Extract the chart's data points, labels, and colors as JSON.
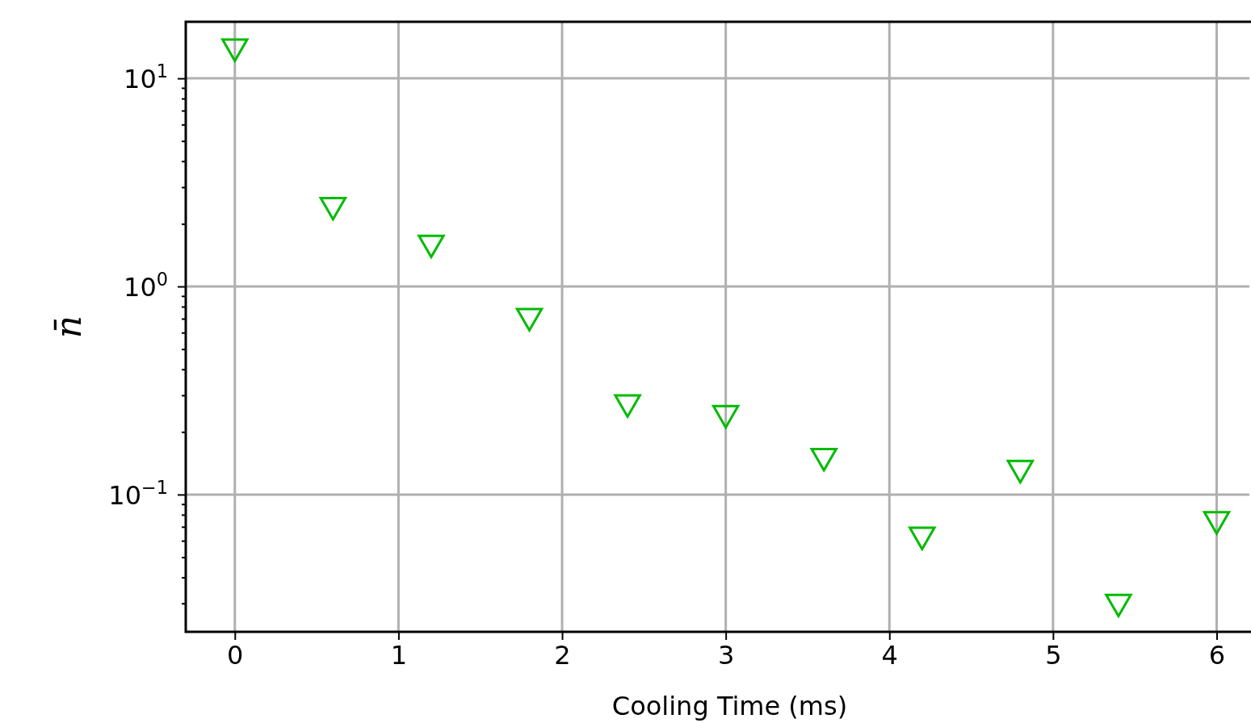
{
  "chart_data": {
    "type": "scatter",
    "xlabel": "Cooling Time (ms)",
    "ylabel": "n̄",
    "x": [
      0,
      0.6,
      1.2,
      1.8,
      2.4,
      3.0,
      3.6,
      4.2,
      4.8,
      5.4,
      6.0
    ],
    "series": [
      {
        "color": "#00bb00",
        "values": [
          14.2,
          2.46,
          1.62,
          0.72,
          0.277,
          0.246,
          0.153,
          0.064,
          0.134,
          0.0305,
          0.076
        ]
      }
    ],
    "log": "y",
    "marker": "triangle",
    "grid": true,
    "xlim": [
      -0.3,
      6.2
    ],
    "xticks": [
      0,
      1,
      2,
      3,
      4,
      5,
      6
    ],
    "ylim": [
      0.0219,
      18.7
    ],
    "yticks": [
      {
        "value": 0.03,
        "label": null
      },
      {
        "value": 0.04,
        "label": null
      },
      {
        "value": 0.05,
        "label": null
      },
      {
        "value": 0.06,
        "label": null
      },
      {
        "value": 0.07,
        "label": null
      },
      {
        "value": 0.08,
        "label": null
      },
      {
        "value": 0.09,
        "label": null
      },
      {
        "value": 0.1,
        "label": "10$^{−1}$"
      },
      {
        "value": 0.2,
        "label": null
      },
      {
        "value": 0.3,
        "label": null
      },
      {
        "value": 0.4,
        "label": null
      },
      {
        "value": 0.5,
        "label": null
      },
      {
        "value": 0.6,
        "label": null
      },
      {
        "value": 0.7,
        "label": null
      },
      {
        "value": 0.8,
        "label": null
      },
      {
        "value": 0.9,
        "label": null
      },
      {
        "value": 1,
        "label": "10$^{0}$"
      },
      {
        "value": 2,
        "label": null
      },
      {
        "value": 3,
        "label": null
      },
      {
        "value": 4,
        "label": null
      },
      {
        "value": 5,
        "label": null
      },
      {
        "value": 6,
        "label": null
      },
      {
        "value": 7,
        "label": null
      },
      {
        "value": 8,
        "label": null
      },
      {
        "value": 9,
        "label": null
      },
      {
        "value": 10,
        "label": "10$^{1}$"
      }
    ]
  }
}
